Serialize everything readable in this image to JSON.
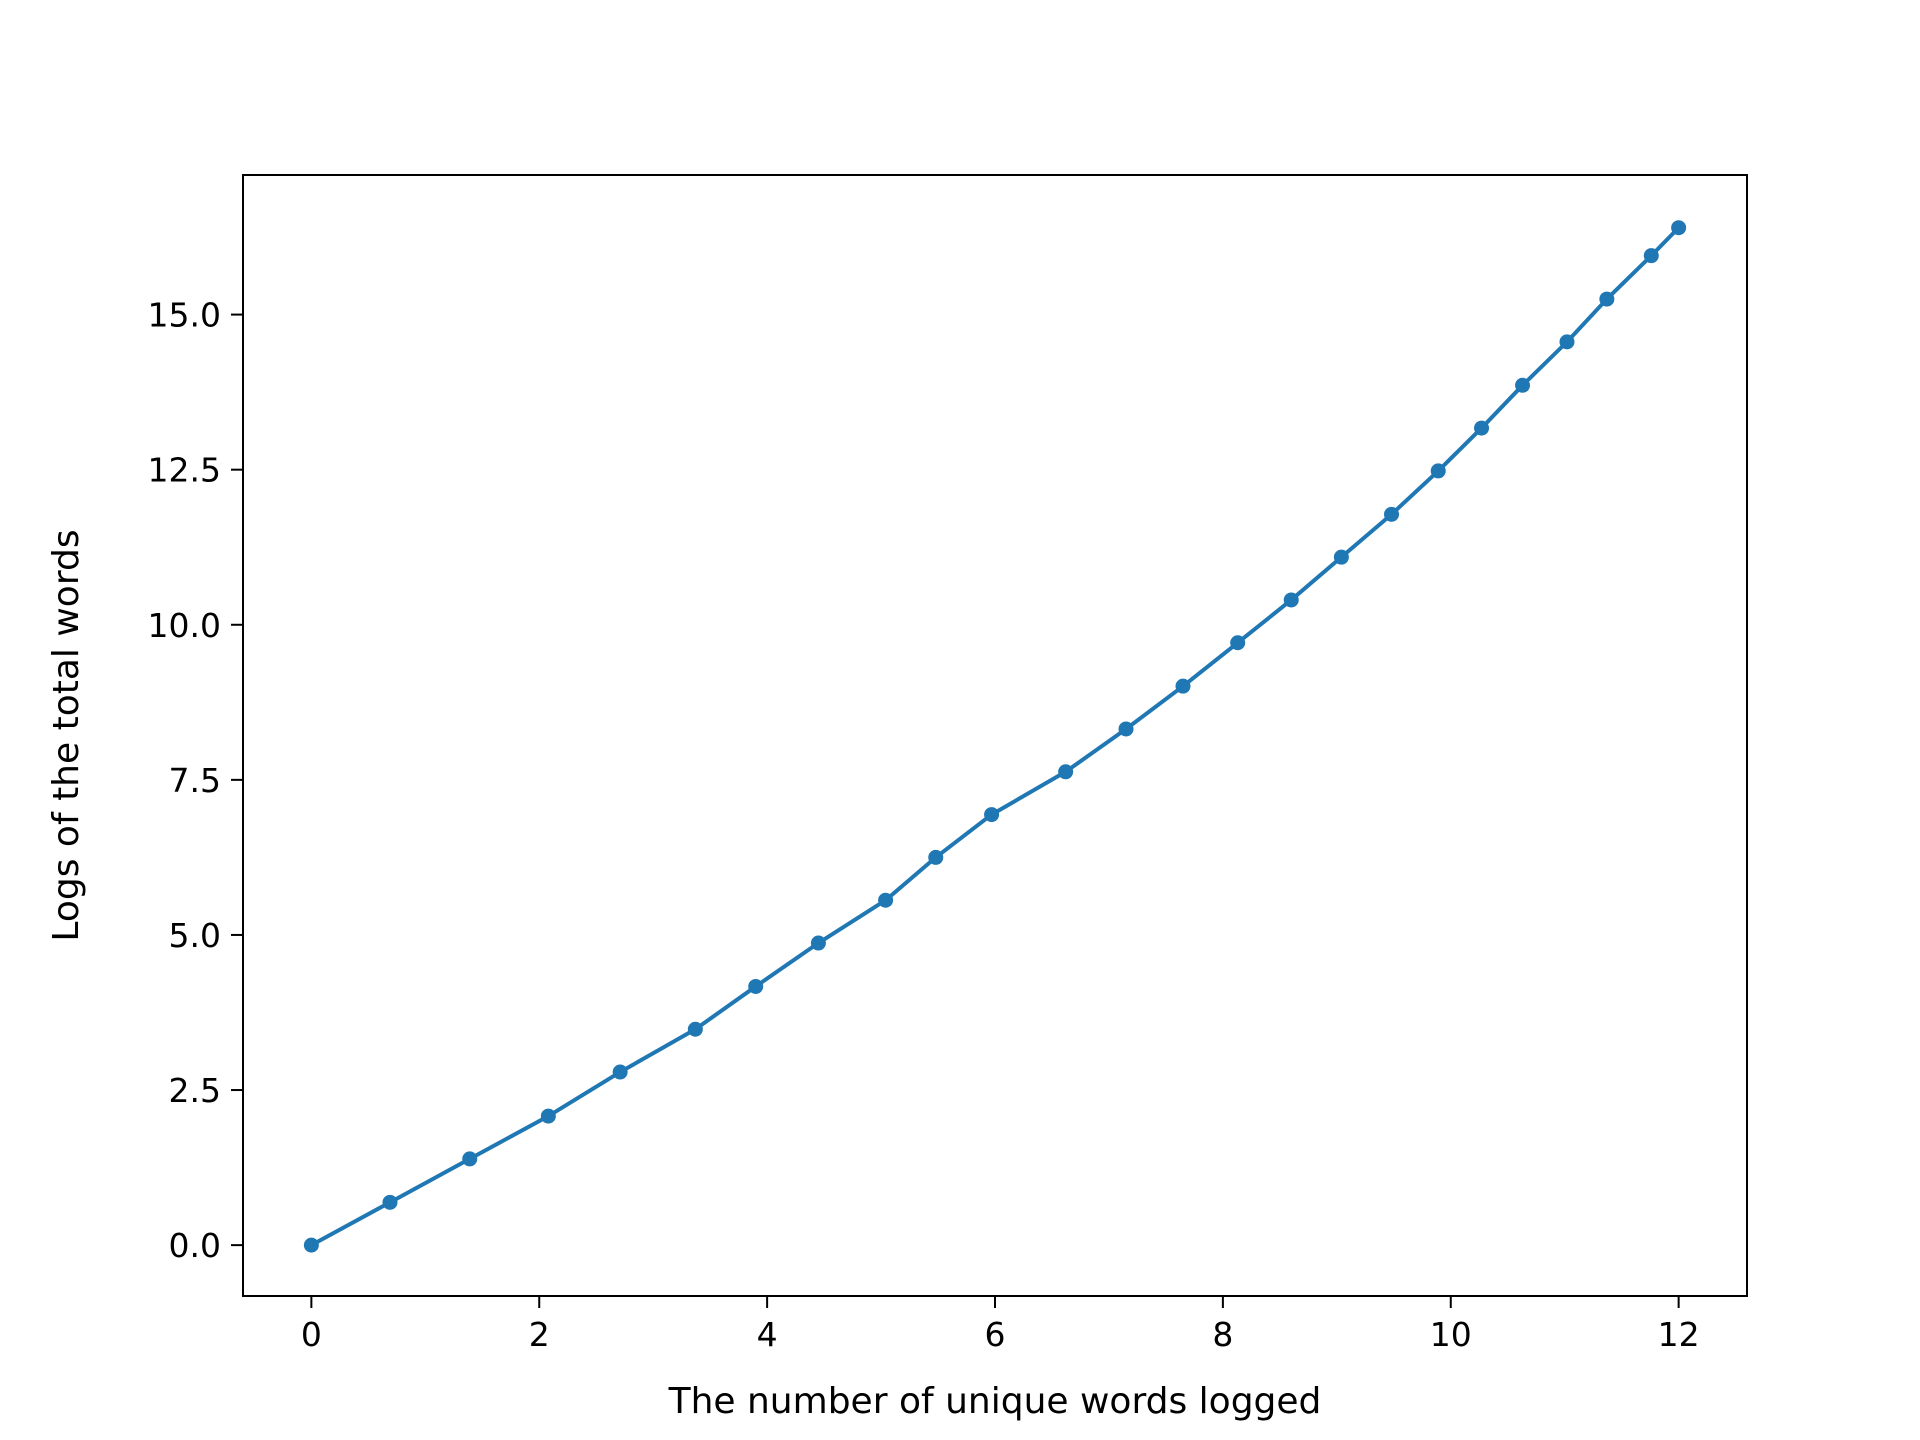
{
  "chart_data": {
    "type": "line",
    "title": "",
    "xlabel": "The number of unique words logged",
    "ylabel": "Logs of the total words",
    "xlim": [
      -0.6,
      12.6
    ],
    "ylim": [
      -0.82,
      17.25
    ],
    "xticks": [
      0,
      2,
      4,
      6,
      8,
      10,
      12
    ],
    "xtick_labels": [
      "0",
      "2",
      "4",
      "6",
      "8",
      "10",
      "12"
    ],
    "yticks": [
      0,
      2.5,
      5,
      7.5,
      10,
      12.5,
      15
    ],
    "ytick_labels": [
      "0.0",
      "2.5",
      "5.0",
      "7.5",
      "10.0",
      "12.5",
      "15.0"
    ],
    "grid": false,
    "legend": "none",
    "series": [
      {
        "color": "#1f77b4",
        "marker": "circle",
        "x": [
          0,
          0.69,
          1.39,
          2.08,
          2.71,
          3.37,
          3.9,
          4.45,
          5.04,
          5.48,
          5.97,
          6.62,
          7.15,
          7.65,
          8.13,
          8.6,
          9.04,
          9.48,
          9.89,
          10.27,
          10.63,
          11.02,
          11.37,
          11.76,
          12.0
        ],
        "y": [
          0,
          0.69,
          1.39,
          2.08,
          2.79,
          3.48,
          4.17,
          4.87,
          5.56,
          6.25,
          6.94,
          7.63,
          8.32,
          9.01,
          9.71,
          10.4,
          11.09,
          11.78,
          12.48,
          13.17,
          13.86,
          14.56,
          15.25,
          15.95,
          16.4
        ]
      }
    ]
  }
}
